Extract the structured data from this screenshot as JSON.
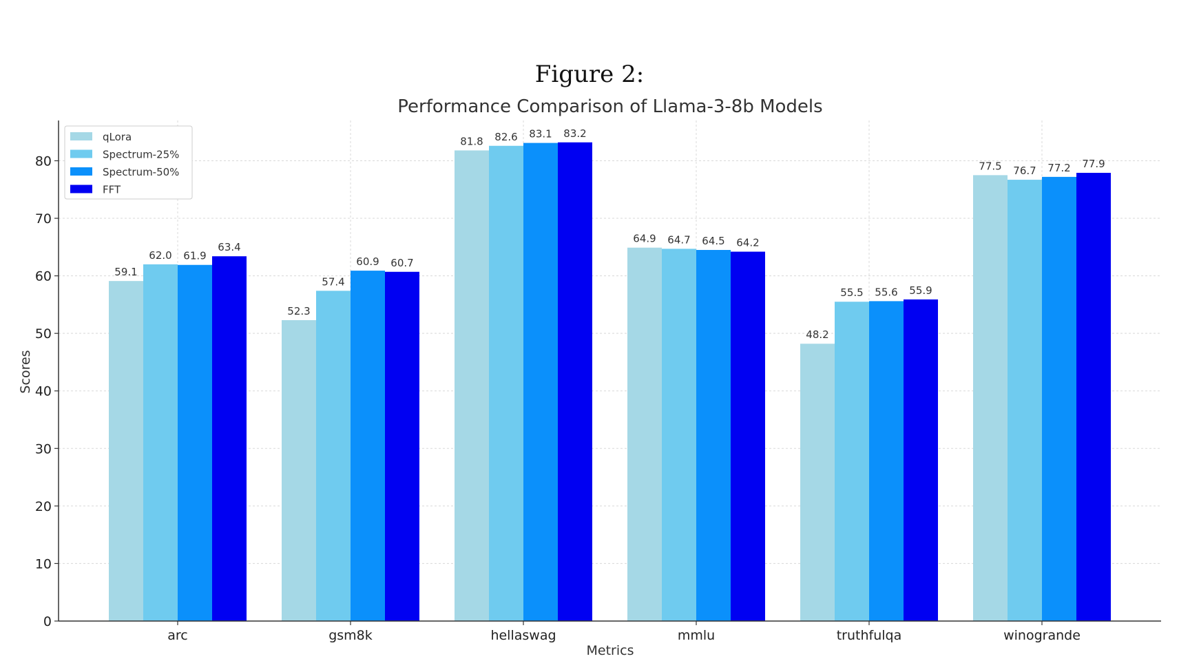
{
  "figure": {
    "caption": "Figure 2:"
  },
  "chart_data": {
    "type": "bar",
    "title": "Performance Comparison of Llama-3-8b Models",
    "xlabel": "Metrics",
    "ylabel": "Scores",
    "ylim": [
      0,
      87
    ],
    "yticks": [
      0,
      10,
      20,
      30,
      40,
      50,
      60,
      70,
      80
    ],
    "grid": true,
    "legend_position": "top-left",
    "categories": [
      "arc",
      "gsm8k",
      "hellaswag",
      "mmlu",
      "truthfulqa",
      "winogrande"
    ],
    "series": [
      {
        "name": "qLora",
        "color": "#a5d8e6",
        "values": [
          59.1,
          52.3,
          81.8,
          64.9,
          48.2,
          77.5
        ]
      },
      {
        "name": "Spectrum-25%",
        "color": "#6fcbef",
        "values": [
          62.0,
          57.4,
          82.6,
          64.7,
          55.5,
          76.7
        ]
      },
      {
        "name": "Spectrum-50%",
        "color": "#0b90fb",
        "values": [
          61.9,
          60.9,
          83.1,
          64.5,
          55.6,
          77.2
        ]
      },
      {
        "name": "FFT",
        "color": "#0000f2",
        "values": [
          63.4,
          60.7,
          83.2,
          64.2,
          55.9,
          77.9
        ]
      }
    ]
  }
}
